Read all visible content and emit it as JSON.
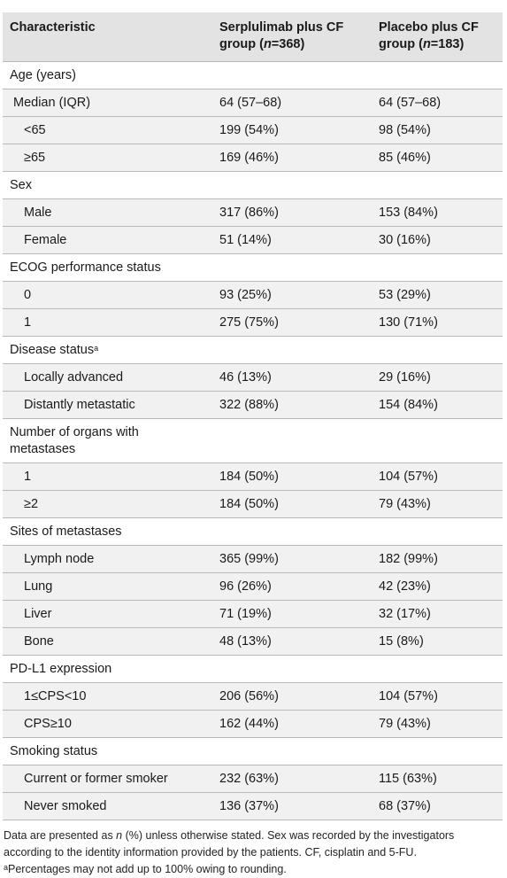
{
  "header": {
    "col1": "Characteristic",
    "col2_a": "Serplulimab plus CF",
    "col2_b_pre": "group (",
    "col2_n": "n",
    "col2_b_post": "=368)",
    "col3_a": "Placebo plus CF",
    "col3_b_pre": "group (",
    "col3_n": "n",
    "col3_b_post": "=183)"
  },
  "rows": {
    "age_h": "Age (years)",
    "age_median": "Median (IQR)",
    "age_median_s": "64 (57–68)",
    "age_median_p": "64 (57–68)",
    "age_lt65": "<65",
    "age_lt65_s": "199 (54%)",
    "age_lt65_p": "98 (54%)",
    "age_ge65": "≥65",
    "age_ge65_s": "169 (46%)",
    "age_ge65_p": "85 (46%)",
    "sex_h": "Sex",
    "male": "Male",
    "male_s": "317 (86%)",
    "male_p": "153 (84%)",
    "female": "Female",
    "female_s": "51 (14%)",
    "female_p": "30 (16%)",
    "ecog_h": "ECOG performance status",
    "ecog0": "0",
    "ecog0_s": "93 (25%)",
    "ecog0_p": "53 (29%)",
    "ecog1": "1",
    "ecog1_s": "275 (75%)",
    "ecog1_p": "130 (71%)",
    "disease_h": "Disease status",
    "disease_sup": "a",
    "local": "Locally advanced",
    "local_s": "46 (13%)",
    "local_p": "29 (16%)",
    "distant": "Distantly metastatic",
    "distant_s": "322 (88%)",
    "distant_p": "154 (84%)",
    "organs_h": "Number of organs with metastases",
    "org1": "1",
    "org1_s": "184 (50%)",
    "org1_p": "104 (57%)",
    "org2": "≥2",
    "org2_s": "184 (50%)",
    "org2_p": "79 (43%)",
    "sites_h": "Sites of metastases",
    "lymph": "Lymph node",
    "lymph_s": "365 (99%)",
    "lymph_p": "182 (99%)",
    "lung": "Lung",
    "lung_s": "96 (26%)",
    "lung_p": "42 (23%)",
    "liver": "Liver",
    "liver_s": "71 (19%)",
    "liver_p": "32 (17%)",
    "bone": "Bone",
    "bone_s": "48 (13%)",
    "bone_p": "15 (8%)",
    "pdl1_h": "PD-L1 expression",
    "cps1": "1≤CPS<10",
    "cps1_s": "206 (56%)",
    "cps1_p": "104 (57%)",
    "cps2": "CPS≥10",
    "cps2_s": "162 (44%)",
    "cps2_p": "79 (43%)",
    "smoke_h": "Smoking status",
    "smoker": "Current or former smoker",
    "smoker_s": "232 (63%)",
    "smoker_p": "115 (63%)",
    "never": "Never smoked",
    "never_s": "136 (37%)",
    "never_p": "68 (37%)"
  },
  "footnote": {
    "l1_pre": "Data are presented as ",
    "l1_n": "n",
    "l1_post": " (%) unless otherwise stated. Sex was recorded by the investigators according to the identity information provided by the patients. CF, cisplatin and 5-FU.",
    "l2_sup": "a",
    "l2_text": "Percentages may not add up to 100% owing to rounding."
  }
}
